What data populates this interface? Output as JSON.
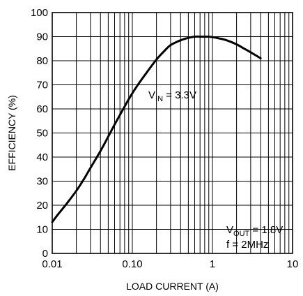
{
  "chart_data": {
    "type": "line",
    "title": "",
    "xlabel": "LOAD CURRENT (A)",
    "ylabel": "EFFICIENCY (%)",
    "xscale": "log",
    "xlim": [
      0.01,
      10
    ],
    "ylim": [
      0,
      100
    ],
    "grid": true,
    "x_tick_labels": [
      "0.01",
      "0.10",
      "1",
      "10"
    ],
    "y_tick_labels": [
      "0",
      "10",
      "20",
      "30",
      "40",
      "50",
      "60",
      "70",
      "80",
      "90",
      "100"
    ],
    "series": [
      {
        "x": [
          0.01,
          0.012,
          0.015,
          0.02,
          0.025,
          0.03,
          0.04,
          0.05,
          0.06,
          0.07,
          0.08,
          0.1,
          0.12,
          0.15,
          0.2,
          0.25,
          0.3,
          0.4,
          0.5,
          0.6,
          0.7,
          0.8,
          0.9,
          1.0,
          1.2,
          1.5,
          2.0,
          2.5,
          3.0,
          4.0
        ],
        "y": [
          13,
          16.5,
          20.5,
          26,
          31,
          35.5,
          42.5,
          48.5,
          53.5,
          57.5,
          61,
          66.5,
          70.5,
          75,
          80.5,
          84,
          86.5,
          88.5,
          89.5,
          90,
          90,
          90,
          90,
          89.8,
          89.3,
          88.5,
          86.8,
          85,
          83.5,
          81
        ]
      }
    ],
    "annotations": [
      {
        "main": "V",
        "sub": "IN",
        "rest": " = 3.3V"
      },
      {
        "main": "V",
        "sub": "OUT",
        "rest": " = 1.8V"
      },
      {
        "main": "f = 2MHz",
        "sub": "",
        "rest": ""
      }
    ]
  }
}
